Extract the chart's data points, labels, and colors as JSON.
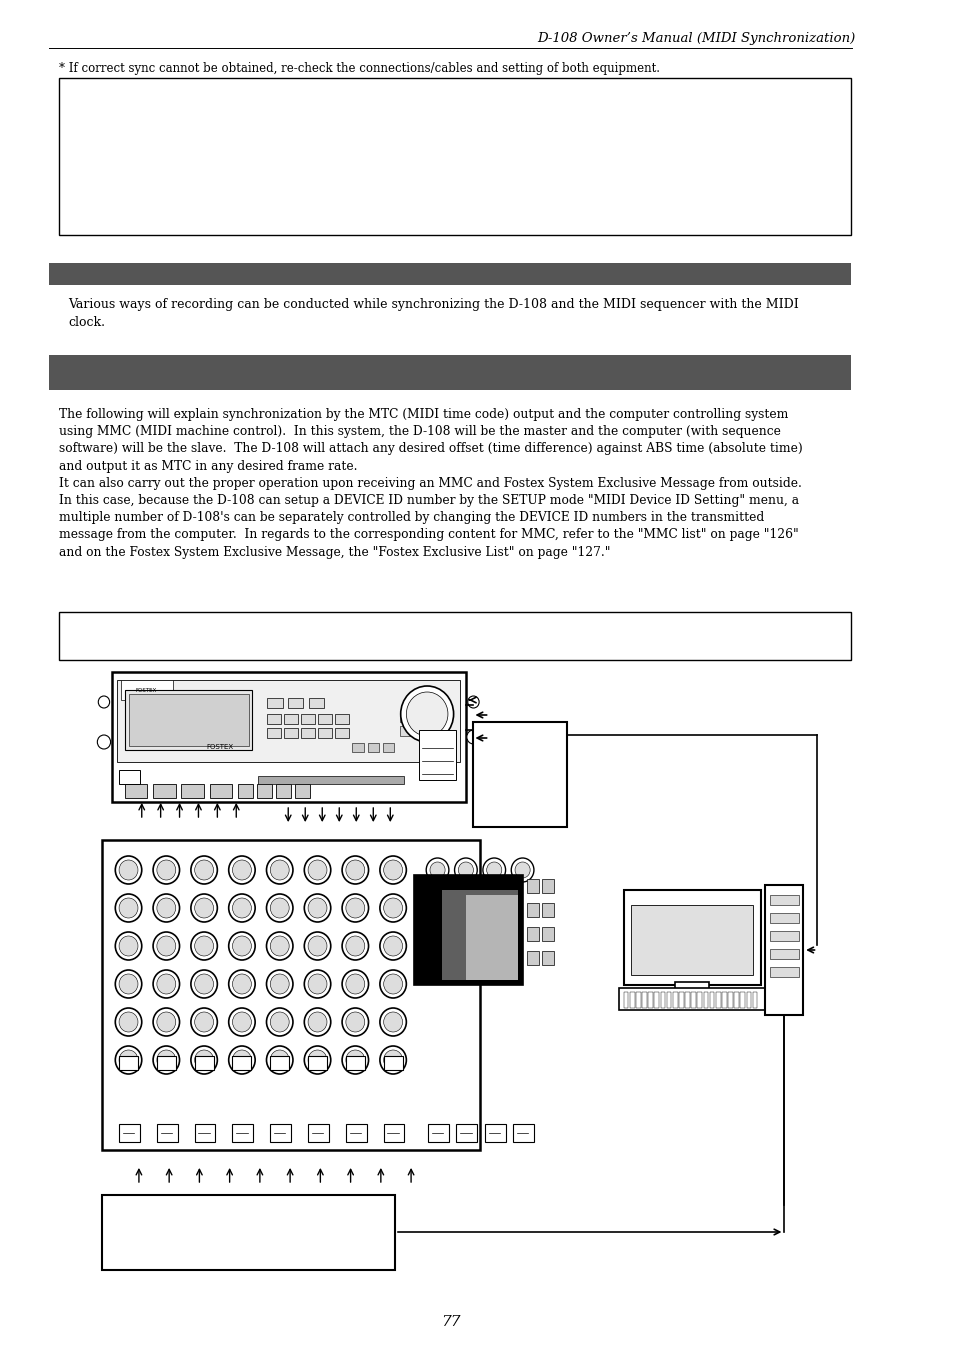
{
  "page_title": "D-108 Owner’s Manual (MIDI Synchronization)",
  "note_text": "* If correct sync cannot be obtained, re-check the connections/cables and setting of both equipment.",
  "section1_bar_color": "#555555",
  "section1_text": "Various ways of recording can be conducted while synchronizing the D-108 and the MIDI sequencer with the MIDI\nclock.",
  "section2_bar_color": "#555555",
  "section2_body": "The following will explain synchronization by the MTC (MIDI time code) output and the computer controlling system\nusing MMC (MIDI machine control).  In this system, the D-108 will be the master and the computer (with sequence\nsoftware) will be the slave.  The D-108 will attach any desired offset (time difference) against ABS time (absolute time)\nand output it as MTC in any desired frame rate.\nIt can also carry out the proper operation upon receiving an MMC and Fostex System Exclusive Message from outside.\nIn this case, because the D-108 can setup a DEVICE ID number by the SETUP mode \"MIDI Device ID Setting\" menu, a\nmultiple number of D-108's can be separately controlled by changing the DEVICE ID numbers in the transmitted\nmessage from the computer.  In regards to the corresponding content for MMC, refer to the \"MMC list\" on page \"126\"\nand on the Fostex System Exclusive Message, the \"Fostex Exclusive List\" on page \"127.\"",
  "page_number": "77",
  "bg_color": "#ffffff",
  "text_color": "#000000",
  "border_color": "#000000",
  "header_bar_color": "#555555"
}
